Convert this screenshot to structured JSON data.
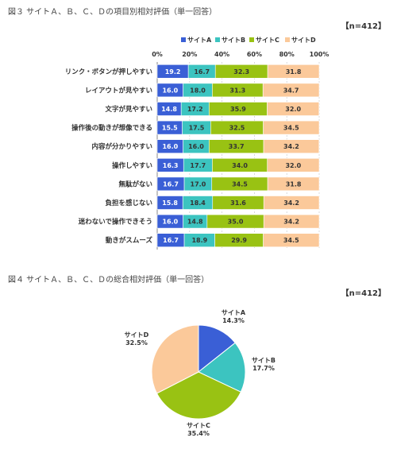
{
  "fig3": {
    "title": "図３ サイトＡ、Ｂ、Ｃ、Ｄの項目別相対評価（単一回答）",
    "n_label": "【n=412】"
  },
  "fig4": {
    "title": "図４ サイトＡ、Ｂ、Ｃ、Ｄの総合相対評価（単一回答）",
    "n_label": "【n=412】"
  },
  "colors": {
    "site_a": "#3a5fd6",
    "site_b": "#3cc4c0",
    "site_c": "#99c213",
    "site_d": "#fbc99a",
    "bar_label_dark": "#333333",
    "bar_label_light": "#ffffff"
  },
  "chart_data": [
    {
      "type": "bar",
      "orientation": "horizontal",
      "stacked": true,
      "percent_stacked": true,
      "categories": [
        "リンク・ボタンが押しやすい",
        "レイアウトが見やすい",
        "文字が見やすい",
        "操作後の動きが想像できる",
        "内容が分かりやすい",
        "操作しやすい",
        "無駄がない",
        "負担を感じない",
        "迷わないで操作できそう",
        "動きがスムーズ"
      ],
      "series": [
        {
          "name": "サイトA",
          "color": "#3a5fd6",
          "values": [
            19.2,
            16.0,
            14.8,
            15.5,
            16.0,
            16.3,
            16.7,
            15.8,
            16.0,
            16.7
          ]
        },
        {
          "name": "サイトB",
          "color": "#3cc4c0",
          "values": [
            16.7,
            18.0,
            17.2,
            17.5,
            16.0,
            17.7,
            17.0,
            18.4,
            14.8,
            18.9
          ]
        },
        {
          "name": "サイトC",
          "color": "#99c213",
          "values": [
            32.3,
            31.3,
            35.9,
            32.5,
            33.7,
            34.0,
            34.5,
            31.6,
            35.0,
            29.9
          ]
        },
        {
          "name": "サイトD",
          "color": "#fbc99a",
          "values": [
            31.8,
            34.7,
            32.0,
            34.5,
            34.2,
            32.0,
            31.8,
            34.2,
            34.2,
            34.5
          ]
        }
      ],
      "xlim": [
        0,
        100
      ],
      "xticks": [
        "0%",
        "20%",
        "40%",
        "60%",
        "80%",
        "100%"
      ],
      "legend": "top",
      "grid": true
    },
    {
      "type": "pie",
      "slices": [
        {
          "label": "サイトA",
          "pct_label": "14.3%",
          "value": 14.3,
          "color": "#3a5fd6"
        },
        {
          "label": "サイトB",
          "pct_label": "17.7%",
          "value": 17.7,
          "color": "#3cc4c0"
        },
        {
          "label": "サイトC",
          "pct_label": "35.4%",
          "value": 35.4,
          "color": "#99c213"
        },
        {
          "label": "サイトD",
          "pct_label": "32.5%",
          "value": 32.5,
          "color": "#fbc99a"
        }
      ],
      "start": "top",
      "direction": "clockwise"
    }
  ]
}
